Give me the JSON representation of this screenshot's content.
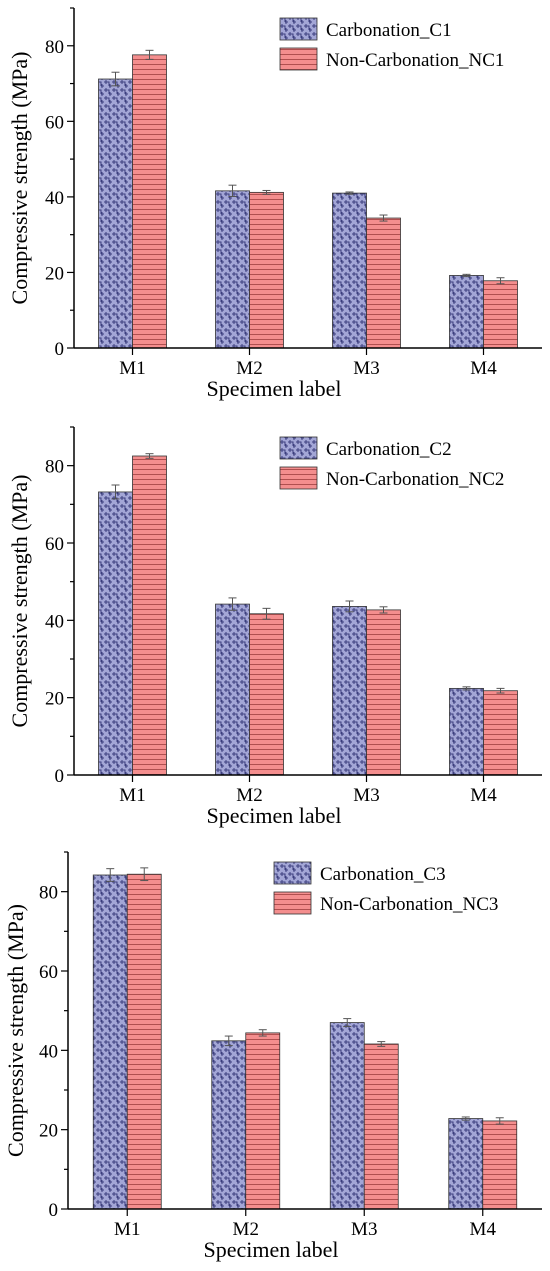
{
  "colors": {
    "carbonation_fill": "#a3a6d6",
    "carbonation_pattern": "#3c3f7e",
    "noncarbonation_fill": "#f48e8e",
    "noncarbonation_pattern": "#a84848",
    "axis": "#000000",
    "error_bar": "#555555"
  },
  "chart_data": [
    {
      "type": "bar",
      "categories": [
        "M1",
        "M2",
        "M3",
        "M4"
      ],
      "series": [
        {
          "name": "Carbonation_C1",
          "values": [
            71.2,
            41.6,
            41.0,
            19.2
          ],
          "errors": [
            1.8,
            1.5,
            0.3,
            0.3
          ]
        },
        {
          "name": "Non-Carbonation_NC1",
          "values": [
            77.6,
            41.2,
            34.4,
            17.8
          ],
          "errors": [
            1.2,
            0.5,
            0.8,
            0.8
          ]
        }
      ],
      "xlabel": "Specimen label",
      "ylabel": "Compressive strength (MPa)",
      "ylim": [
        0,
        90
      ],
      "yticks": [
        0,
        20,
        40,
        60,
        80
      ],
      "grid": false,
      "legend": "top-right"
    },
    {
      "type": "bar",
      "categories": [
        "M1",
        "M2",
        "M3",
        "M4"
      ],
      "series": [
        {
          "name": "Carbonation_C2",
          "values": [
            73.2,
            44.2,
            43.6,
            22.4
          ],
          "errors": [
            1.8,
            1.6,
            1.4,
            0.4
          ]
        },
        {
          "name": "Non-Carbonation_NC2",
          "values": [
            82.5,
            41.7,
            42.7,
            21.8
          ],
          "errors": [
            0.6,
            1.4,
            0.8,
            0.6
          ]
        }
      ],
      "xlabel": "Specimen label",
      "ylabel": "Compressive strength (MPa)",
      "ylim": [
        0,
        90
      ],
      "yticks": [
        0,
        20,
        40,
        60,
        80
      ],
      "grid": false,
      "legend": "top-right"
    },
    {
      "type": "bar",
      "categories": [
        "M1",
        "M2",
        "M3",
        "M4"
      ],
      "series": [
        {
          "name": "Carbonation_C3",
          "values": [
            84.2,
            42.4,
            47.0,
            22.8
          ],
          "errors": [
            1.6,
            1.2,
            1.0,
            0.4
          ]
        },
        {
          "name": "Non-Carbonation_NC3",
          "values": [
            84.4,
            44.4,
            41.6,
            22.2
          ],
          "errors": [
            1.6,
            0.8,
            0.6,
            0.8
          ]
        }
      ],
      "xlabel": "Specimen label",
      "ylabel": "Compressive strength (MPa)",
      "ylim": [
        0,
        90
      ],
      "yticks": [
        0,
        20,
        40,
        60,
        80
      ],
      "grid": false,
      "legend": "top-right"
    }
  ]
}
